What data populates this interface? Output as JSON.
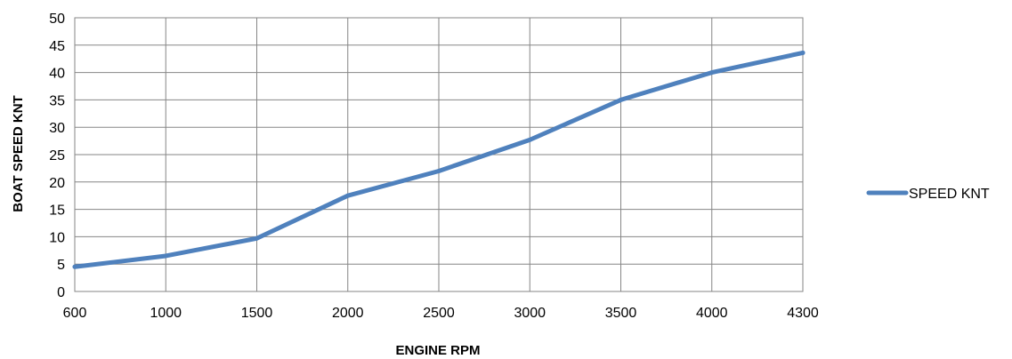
{
  "chart_data": {
    "type": "line",
    "title": "",
    "xlabel": "ENGINE RPM",
    "ylabel": "BOAT SPEED KNT",
    "categories": [
      "600",
      "1000",
      "1500",
      "2000",
      "2500",
      "3000",
      "3500",
      "4000",
      "4300"
    ],
    "series": [
      {
        "name": "SPEED KNT",
        "color": "#4F81BD",
        "values": [
          4.5,
          6.5,
          9.7,
          17.5,
          22,
          27.7,
          35,
          40,
          43.6
        ]
      }
    ],
    "ylim": [
      0,
      50
    ],
    "yticks": [
      0,
      5,
      10,
      15,
      20,
      25,
      30,
      35,
      40,
      45,
      50
    ],
    "grid": true,
    "legend_position": "right"
  }
}
